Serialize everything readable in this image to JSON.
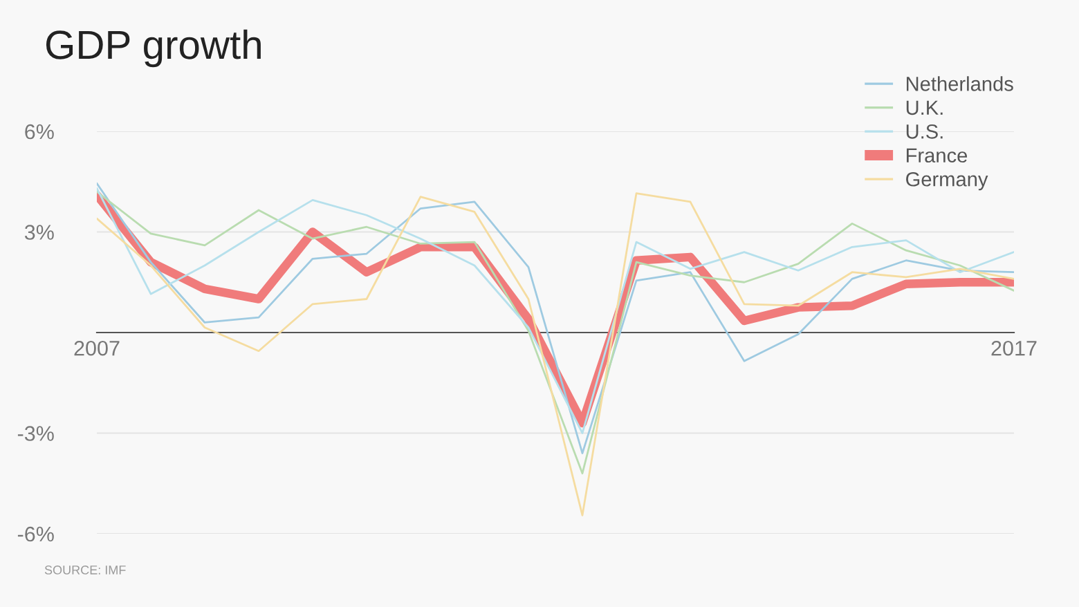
{
  "chart_data": {
    "type": "line",
    "title": "GDP growth",
    "categories": [
      "2007",
      null,
      null,
      null,
      null,
      null,
      null,
      null,
      null,
      null,
      null,
      null,
      null,
      null,
      null,
      null,
      null,
      "2017"
    ],
    "series": [
      {
        "name": "Netherlands",
        "color": "#9ecae1",
        "values": [
          4.45,
          2.1,
          0.3,
          0.45,
          2.2,
          2.35,
          3.7,
          3.9,
          1.95,
          -3.6,
          1.55,
          1.8,
          -0.85,
          -0.05,
          1.6,
          2.15,
          1.85,
          1.8
        ]
      },
      {
        "name": "U.K.",
        "color": "#b9dcb0",
        "values": [
          4.2,
          2.95,
          2.6,
          3.65,
          2.8,
          3.15,
          2.65,
          2.7,
          0.05,
          -4.2,
          2.1,
          1.7,
          1.5,
          2.05,
          3.25,
          2.45,
          2.0,
          1.25
        ]
      },
      {
        "name": "U.S.",
        "color": "#b6e0ec",
        "values": [
          4.3,
          1.15,
          2.0,
          3.0,
          3.95,
          3.5,
          2.8,
          2.0,
          0.15,
          -3.0,
          2.7,
          1.9,
          2.4,
          1.85,
          2.55,
          2.75,
          1.8,
          2.4
        ]
      },
      {
        "name": "France",
        "color": "#f07b7b",
        "values": [
          4.1,
          2.1,
          1.3,
          1.0,
          3.0,
          1.8,
          2.55,
          2.55,
          0.4,
          -2.7,
          2.15,
          2.25,
          0.35,
          0.75,
          0.8,
          1.45,
          1.5,
          1.5
        ]
      },
      {
        "name": "Germany",
        "color": "#f5dca0",
        "values": [
          3.4,
          2.0,
          0.15,
          -0.55,
          0.85,
          1.0,
          4.05,
          3.6,
          1.0,
          -5.45,
          4.15,
          3.9,
          0.85,
          0.8,
          1.8,
          1.65,
          1.9,
          1.6
        ]
      }
    ],
    "ylim": [
      -6,
      6
    ],
    "yticks": [
      {
        "value": -6,
        "label": "-6%"
      },
      {
        "value": -3,
        "label": "-3%"
      },
      {
        "value": 3,
        "label": "3%"
      },
      {
        "value": 6,
        "label": "6%"
      }
    ],
    "grid": "y",
    "legend": "top right",
    "marker": "none",
    "line_style": "solid",
    "annotations": [
      "SOURCE: IMF"
    ]
  }
}
